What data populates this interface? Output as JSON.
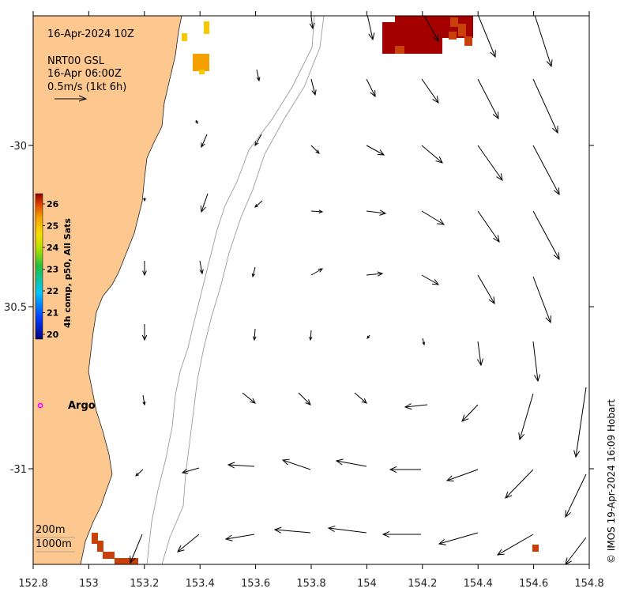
{
  "map": {
    "date_title": "16-Apr-2024 10Z",
    "product": "NRT00 GSL",
    "product_time": "16-Apr 06:00Z",
    "scale_label": "0.5m/s (1kt 6h)",
    "colorbar_label": "4h comp, p50, All Sats",
    "colorbar_ticks": [
      "26",
      "25",
      "24",
      "23",
      "22",
      "21",
      "20"
    ],
    "depth_labels": [
      "200m",
      "1000m"
    ],
    "argo_label": "Argo",
    "credit": "© IMOS 19-Apr-2024 16:09 Hobart",
    "x_ticks": [
      "152.8",
      "153",
      "153.2",
      "153.4",
      "153.6",
      "153.8",
      "154",
      "154.2",
      "154.4",
      "154.6",
      "154.8"
    ],
    "y_ticks": [
      "-30",
      "30.5",
      "-31"
    ],
    "colors": {
      "land": "#fcc890",
      "sst_hot": "#a50000",
      "sst_warm": "#c8400a",
      "sst_orange": "#f5a000",
      "sst_yellow": "#f5c800",
      "argo": "#ff00ff"
    }
  }
}
